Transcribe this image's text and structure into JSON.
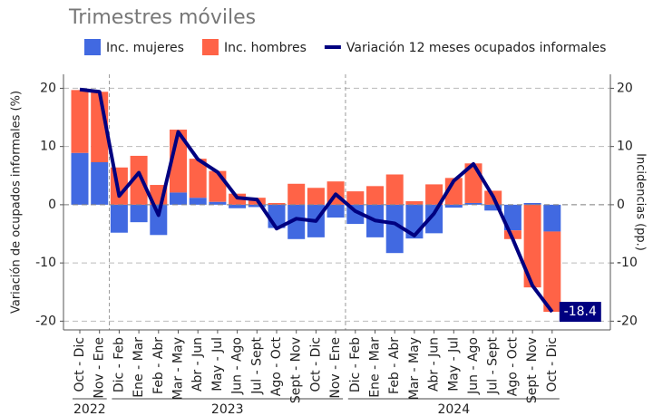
{
  "chart_data": {
    "type": "stacked_bar_line",
    "subtitle": "Trimestres móviles",
    "y_label": "Variación de ocupados informales (%)",
    "y2_label": "Incidencias (pp.)",
    "categories": [
      "Oct - Dic",
      "Nov - Ene",
      "Dic - Feb",
      "Ene - Mar",
      "Feb - Abr",
      "Mar - May",
      "Abr - Jun",
      "May - Jul",
      "Jun - Ago",
      "Jul - Sept",
      "Ago - Oct",
      "Sept - Nov",
      "Oct - Dic",
      "Nov - Ene",
      "Dic - Feb",
      "Ene - Mar",
      "Feb - Abr",
      "Mar - May",
      "Abr - Jun",
      "May - Jul",
      "Jun - Ago",
      "Jul - Sept",
      "Ago - Oct",
      "Sept - Nov",
      "Oct - Dic"
    ],
    "year_groups": [
      {
        "label": "2022",
        "count": 2
      },
      {
        "label": "2023",
        "count": 12
      },
      {
        "label": "2024",
        "count": 11
      }
    ],
    "series": [
      {
        "name": "Inc. mujeres",
        "color": "#4169e1",
        "kind": "bar",
        "values": [
          8.9,
          7.3,
          -4.8,
          -3.0,
          -5.2,
          2.1,
          1.2,
          0.5,
          -0.6,
          -0.4,
          -4.0,
          -5.9,
          -5.6,
          -2.2,
          -3.3,
          -5.6,
          -8.3,
          -5.8,
          -4.9,
          -0.5,
          0.3,
          -1.0,
          -4.4,
          0.3,
          -4.6
        ]
      },
      {
        "name": "Inc. hombres",
        "color": "#ff6347",
        "kind": "bar",
        "values": [
          10.8,
          12.1,
          6.4,
          8.4,
          3.4,
          10.8,
          6.7,
          5.3,
          1.9,
          1.2,
          0.3,
          3.6,
          2.9,
          4.0,
          2.3,
          3.2,
          5.2,
          0.6,
          3.5,
          4.6,
          6.8,
          2.4,
          -1.5,
          -14.2,
          -13.8
        ]
      },
      {
        "name": "Variación 12 meses ocupados informales",
        "color": "#000080",
        "kind": "line",
        "values": [
          19.8,
          19.4,
          1.5,
          5.5,
          -1.8,
          12.5,
          7.8,
          5.6,
          1.2,
          0.9,
          -4.1,
          -2.4,
          -2.8,
          1.8,
          -1.1,
          -2.7,
          -3.2,
          -5.3,
          -1.5,
          4.1,
          7.0,
          1.4,
          -5.9,
          -13.9,
          -18.4
        ]
      }
    ],
    "last_label": "-18.4",
    "ylim": [
      -21.5,
      22.4
    ],
    "yticks": [
      -20,
      -10,
      0,
      10,
      20
    ],
    "y2lim": [
      -21.5,
      22.4
    ],
    "y2ticks": [
      -20,
      -10,
      0,
      10,
      20
    ],
    "grid": true
  }
}
